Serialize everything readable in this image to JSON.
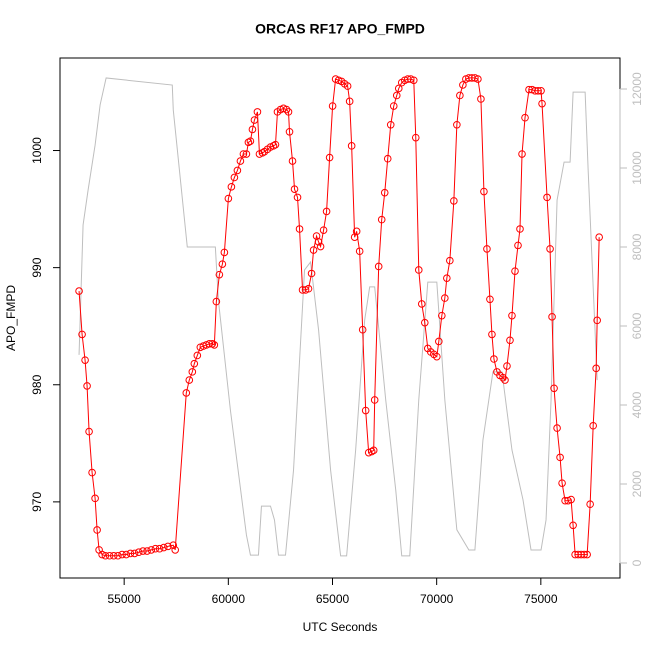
{
  "chart_data": {
    "type": "line",
    "title": "ORCAS RF17 APO_FMPD",
    "xlabel": "UTC Seconds",
    "ylabel": "APO_FMPD",
    "xlim": [
      51920,
      78800
    ],
    "ylim": [
      963.5,
      1007.9
    ],
    "y2lim": [
      -380,
      12785
    ],
    "xticks": [
      55000,
      60000,
      65000,
      70000,
      75000
    ],
    "yticks": [
      970,
      980,
      990,
      1000
    ],
    "y2ticks": [
      0,
      2000,
      4000,
      6000,
      8000,
      10000,
      12000
    ],
    "y2color": "#bebebe",
    "series": [
      {
        "color": "#ff0000",
        "marker": "circle",
        "axis": "y",
        "x": [
          52835,
          52980,
          53124,
          53220,
          53316,
          53461,
          53605,
          53701,
          53797,
          53942,
          54100,
          54300,
          54500,
          54700,
          54900,
          55100,
          55300,
          55500,
          55700,
          55900,
          56100,
          56300,
          56500,
          56700,
          56900,
          57100,
          57357,
          57450,
          57982,
          58126,
          58271,
          58367,
          58511,
          58656,
          58800,
          58945,
          59089,
          59233,
          59329,
          59425,
          59570,
          59714,
          59810,
          60002,
          60147,
          60291,
          60435,
          60580,
          60724,
          60868,
          60964,
          61060,
          61157,
          61253,
          61397,
          61494,
          61638,
          61734,
          61878,
          62023,
          62167,
          62263,
          62359,
          62504,
          62648,
          62792,
          62888,
          62937,
          63081,
          63177,
          63321,
          63418,
          63562,
          63706,
          63850,
          63995,
          64091,
          64235,
          64331,
          64428,
          64572,
          64716,
          64861,
          65005,
          65149,
          65293,
          65438,
          65582,
          65726,
          65823,
          65919,
          66063,
          66159,
          66304,
          66448,
          66592,
          66736,
          66881,
          66977,
          67025,
          67217,
          67362,
          67507,
          67651,
          67795,
          67940,
          68084,
          68180,
          68324,
          68468,
          68613,
          68757,
          68901,
          68997,
          69141,
          69285,
          69430,
          69574,
          69718,
          69863,
          70007,
          70103,
          70247,
          70392,
          70488,
          70632,
          70825,
          70969,
          71114,
          71258,
          71402,
          71546,
          71691,
          71835,
          71979,
          72124,
          72268,
          72413,
          72557,
          72653,
          72749,
          72894,
          73038,
          73182,
          73279,
          73375,
          73519,
          73615,
          73760,
          73904,
          74000,
          74097,
          74241,
          74433,
          74578,
          74722,
          74866,
          75010,
          75058,
          75299,
          75443,
          75539,
          75635,
          75780,
          75924,
          76020,
          76165,
          76309,
          76453,
          76549,
          76646,
          76790,
          76934,
          77079,
          77223,
          77367,
          77512,
          77656,
          77704,
          77800
        ],
        "values": [
          988.0,
          984.3,
          982.1,
          979.9,
          976.0,
          972.5,
          970.3,
          967.6,
          965.9,
          965.5,
          965.4,
          965.4,
          965.4,
          965.4,
          965.5,
          965.5,
          965.6,
          965.6,
          965.7,
          965.8,
          965.8,
          965.9,
          966.0,
          966.0,
          966.1,
          966.2,
          966.3,
          965.9,
          979.3,
          980.4,
          981.1,
          981.8,
          982.5,
          983.2,
          983.3,
          983.4,
          983.5,
          983.5,
          983.4,
          987.1,
          989.4,
          990.3,
          991.3,
          995.9,
          996.9,
          997.7,
          998.3,
          999.1,
          999.7,
          999.7,
          1000.7,
          1000.8,
          1001.8,
          1002.6,
          1003.3,
          999.7,
          999.8,
          999.9,
          1000.1,
          1000.3,
          1000.4,
          1000.5,
          1003.3,
          1003.5,
          1003.6,
          1003.5,
          1003.3,
          1001.6,
          999.1,
          996.7,
          996.0,
          993.3,
          988.1,
          988.1,
          988.2,
          989.5,
          991.5,
          992.7,
          992.2,
          991.8,
          993.2,
          994.8,
          999.4,
          1003.8,
          1006.1,
          1006.0,
          1005.9,
          1005.7,
          1005.5,
          1004.2,
          1000.4,
          992.6,
          993.1,
          991.4,
          984.7,
          977.8,
          974.2,
          974.3,
          974.4,
          978.7,
          990.1,
          994.1,
          996.4,
          999.3,
          1002.2,
          1003.8,
          1004.7,
          1005.3,
          1005.8,
          1006.0,
          1006.1,
          1006.1,
          1006.0,
          1001.1,
          989.8,
          986.9,
          985.3,
          983.1,
          982.8,
          982.6,
          982.4,
          983.7,
          985.9,
          987.4,
          989.1,
          990.6,
          995.7,
          1002.2,
          1004.7,
          1005.6,
          1006.1,
          1006.2,
          1006.2,
          1006.2,
          1006.1,
          1004.4,
          996.5,
          991.6,
          987.3,
          984.3,
          982.2,
          981.1,
          980.8,
          980.6,
          980.4,
          981.6,
          983.8,
          985.9,
          989.7,
          991.9,
          993.3,
          999.7,
          1002.8,
          1005.2,
          1005.2,
          1005.1,
          1005.1,
          1005.1,
          1004.0,
          996.0,
          991.6,
          985.8,
          979.7,
          976.3,
          973.8,
          971.6,
          970.1,
          970.1,
          970.2,
          968.0,
          965.5,
          965.5,
          965.5,
          965.5,
          965.5,
          969.8,
          976.5,
          981.4,
          985.5,
          992.6
        ]
      },
      {
        "color": "#bebebe",
        "axis": "y2",
        "x": [
          52835,
          53028,
          53268,
          53605,
          53846,
          54134,
          57309,
          57357,
          58030,
          59377,
          59521,
          60099,
          60868,
          61061,
          61445,
          61590,
          62023,
          62215,
          62407,
          62744,
          63129,
          63658,
          63947,
          64332,
          64909,
          65390,
          65678,
          66111,
          66544,
          66785,
          67025,
          67554,
          68035,
          68324,
          68709,
          69141,
          69574,
          70007,
          70392,
          70969,
          71546,
          71835,
          72220,
          72701,
          73134,
          73615,
          74144,
          74529,
          75010,
          75250,
          75491,
          75780,
          76116,
          76405,
          76549,
          77126,
          77271,
          77704
        ],
        "values": [
          5270,
          8560,
          9440,
          10580,
          11600,
          12280,
          12100,
          11470,
          8000,
          8000,
          6660,
          3870,
          710,
          200,
          200,
          1440,
          1440,
          1090,
          200,
          200,
          2350,
          7420,
          7620,
          5900,
          2350,
          180,
          180,
          2860,
          6150,
          6990,
          6990,
          4130,
          1850,
          180,
          180,
          4130,
          7110,
          7110,
          4130,
          840,
          330,
          330,
          3110,
          4840,
          4840,
          2860,
          1600,
          330,
          330,
          1090,
          4130,
          9190,
          10150,
          10150,
          11920,
          11920,
          9950,
          4630
        ]
      }
    ]
  }
}
